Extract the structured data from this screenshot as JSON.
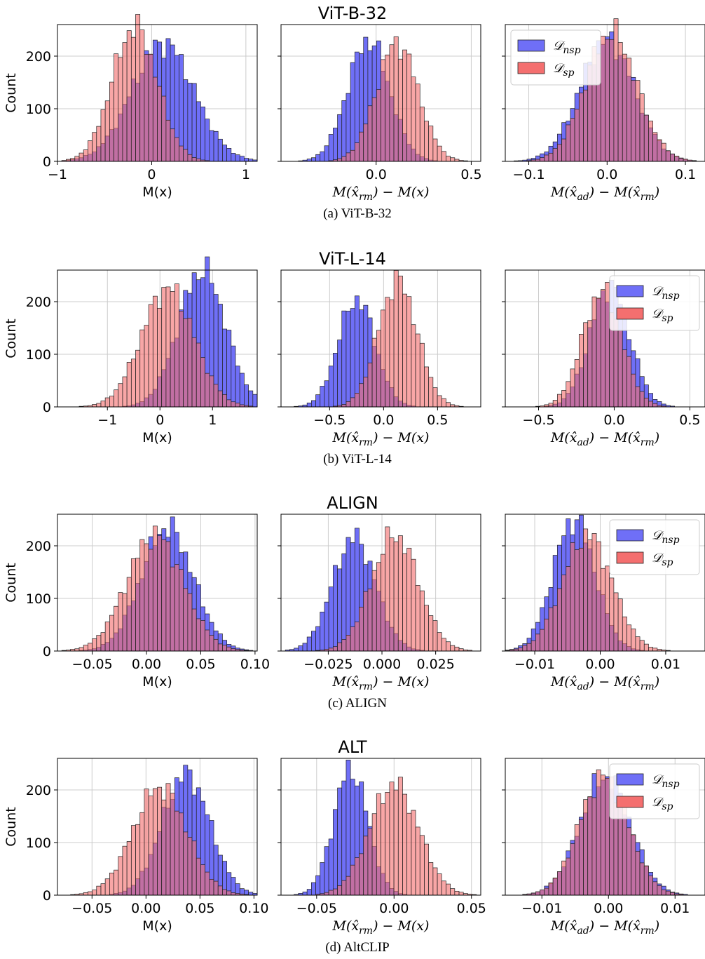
{
  "colors": {
    "nsp": "#6f6ff7",
    "sp": "#f46f6f",
    "overlap": "#9e2f62",
    "edge": "#222222",
    "grid": "#cccccc"
  },
  "legend": {
    "nsp": "𝒟nsp",
    "sp": "𝒟sp"
  },
  "groups": [
    {
      "title": "ViT-B-32",
      "caption": "(a) ViT-B-32",
      "ylabel": "Count",
      "yticks": [
        0,
        100,
        200
      ],
      "panels": [
        {
          "xlabel": "M(x)",
          "math": false,
          "xlim": [
            -1.0,
            1.12
          ],
          "xticks": [
            -1,
            0,
            1
          ],
          "xtickLabels": [
            "−1",
            "0",
            "1"
          ],
          "nsp": {
            "mean": 0.12,
            "sd": 0.33
          },
          "sp": {
            "mean": -0.18,
            "sd": 0.24
          },
          "legend": false
        },
        {
          "xlabel": "M(x̂rm) − M(x)",
          "math": true,
          "xlim": [
            -0.5,
            0.55
          ],
          "xticks": [
            0.0,
            0.5
          ],
          "xtickLabels": [
            "0.0",
            "0.5"
          ],
          "nsp": {
            "mean": -0.04,
            "sd": 0.11
          },
          "sp": {
            "mean": 0.11,
            "sd": 0.11
          },
          "legend": false
        },
        {
          "xlabel": "M(x̂ad) − M(x̂rm)",
          "math": true,
          "xlim": [
            -0.13,
            0.125
          ],
          "xticks": [
            -0.1,
            0.0,
            0.1
          ],
          "xtickLabels": [
            "−0.1",
            "0.0",
            "0.1"
          ],
          "nsp": {
            "mean": 0.0,
            "sd": 0.035
          },
          "sp": {
            "mean": 0.005,
            "sd": 0.033
          },
          "legend": "upper-left"
        }
      ]
    },
    {
      "title": "ViT-L-14",
      "caption": "(b) ViT-L-14",
      "ylabel": "Count",
      "yticks": [
        0,
        100,
        200
      ],
      "panels": [
        {
          "xlabel": "M(x)",
          "math": false,
          "xlim": [
            -1.95,
            1.85
          ],
          "xticks": [
            -1,
            0,
            1
          ],
          "xtickLabels": [
            "−1",
            "0",
            "1"
          ],
          "nsp": {
            "mean": 0.8,
            "sd": 0.45
          },
          "sp": {
            "mean": 0.15,
            "sd": 0.5
          },
          "legend": false
        },
        {
          "xlabel": "M(x̂rm) − M(x)",
          "math": true,
          "xlim": [
            -0.95,
            0.9
          ],
          "xticks": [
            -0.5,
            0.0,
            0.5
          ],
          "xtickLabels": [
            "−0.5",
            "0.0",
            "0.5"
          ],
          "nsp": {
            "mean": -0.25,
            "sd": 0.17
          },
          "sp": {
            "mean": 0.13,
            "sd": 0.18
          },
          "legend": false
        },
        {
          "xlabel": "M(x̂ad) − M(x̂rm)",
          "math": true,
          "xlim": [
            -0.72,
            0.6
          ],
          "xticks": [
            -0.5,
            0.0,
            0.5
          ],
          "xtickLabels": [
            "−0.5",
            "0.0",
            "0.5"
          ],
          "nsp": {
            "mean": -0.03,
            "sd": 0.13
          },
          "sp": {
            "mean": -0.08,
            "sd": 0.13
          },
          "legend": "upper-right"
        }
      ]
    },
    {
      "title": "ALIGN",
      "caption": "(c) ALIGN",
      "ylabel": "Count",
      "yticks": [
        0,
        100,
        200
      ],
      "panels": [
        {
          "xlabel": "M(x)",
          "math": false,
          "xlim": [
            -0.082,
            0.102
          ],
          "xticks": [
            -0.05,
            0.0,
            0.05,
            0.1
          ],
          "xtickLabels": [
            "−0.05",
            "0.00",
            "0.05",
            "0.10"
          ],
          "nsp": {
            "mean": 0.019,
            "sd": 0.024
          },
          "sp": {
            "mean": 0.008,
            "sd": 0.026
          },
          "legend": false
        },
        {
          "xlabel": "M(x̂rm) − M(x)",
          "math": true,
          "xlim": [
            -0.047,
            0.046
          ],
          "xticks": [
            -0.025,
            0.0,
            0.025
          ],
          "xtickLabels": [
            "−0.025",
            "0.000",
            "0.025"
          ],
          "nsp": {
            "mean": -0.013,
            "sd": 0.01
          },
          "sp": {
            "mean": 0.006,
            "sd": 0.011
          },
          "legend": false
        },
        {
          "xlabel": "M(x̂ad) − M(x̂rm)",
          "math": true,
          "xlim": [
            -0.0145,
            0.016
          ],
          "xticks": [
            -0.01,
            0.0,
            0.01
          ],
          "xtickLabels": [
            "−0.01",
            "0.00",
            "0.01"
          ],
          "nsp": {
            "mean": -0.004,
            "sd": 0.0032
          },
          "sp": {
            "mean": -0.002,
            "sd": 0.0038
          },
          "legend": "upper-right"
        }
      ]
    },
    {
      "title": "ALT",
      "caption": "(d) AltCLIP",
      "ylabel": "Count",
      "yticks": [
        0,
        100,
        200
      ],
      "panels": [
        {
          "xlabel": "M(x)",
          "math": false,
          "xlim": [
            -0.082,
            0.103
          ],
          "xticks": [
            -0.05,
            0.0,
            0.05,
            0.1
          ],
          "xtickLabels": [
            "−0.05",
            "0.00",
            "0.05",
            "0.10"
          ],
          "nsp": {
            "mean": 0.037,
            "sd": 0.022
          },
          "sp": {
            "mean": 0.013,
            "sd": 0.025
          },
          "legend": false
        },
        {
          "xlabel": "M(x̂rm) − M(x)",
          "math": true,
          "xlim": [
            -0.073,
            0.056
          ],
          "xticks": [
            -0.05,
            0.0,
            0.05
          ],
          "xtickLabels": [
            "−0.05",
            "0.00",
            "0.05"
          ],
          "nsp": {
            "mean": -0.028,
            "sd": 0.011
          },
          "sp": {
            "mean": 0.0,
            "sd": 0.016
          },
          "legend": false
        },
        {
          "xlabel": "M(x̂ad) − M(x̂rm)",
          "math": true,
          "xlim": [
            -0.0155,
            0.0145
          ],
          "xticks": [
            -0.01,
            0.0,
            0.01
          ],
          "xtickLabels": [
            "−0.01",
            "0.00",
            "0.01"
          ],
          "nsp": {
            "mean": -0.0005,
            "sd": 0.0038
          },
          "sp": {
            "mean": -0.0007,
            "sd": 0.0037
          },
          "legend": "upper-right"
        }
      ]
    }
  ],
  "chart_data": [
    {
      "type": "histogram",
      "title": "ViT-B-32",
      "subplots": [
        {
          "xlabel": "M(x)",
          "ylabel": "Count",
          "xlim": [
            -1.0,
            1.12
          ],
          "ylim": [
            0,
            260
          ],
          "series": [
            {
              "name": "𝒟nsp",
              "mean": 0.12,
              "sd": 0.33,
              "peak_count": 225
            },
            {
              "name": "𝒟sp",
              "mean": -0.18,
              "sd": 0.24,
              "peak_count": 255
            }
          ]
        },
        {
          "xlabel": "M(x̂rm) − M(x)",
          "xlim": [
            -0.5,
            0.55
          ],
          "ylim": [
            0,
            260
          ],
          "series": [
            {
              "name": "𝒟nsp",
              "mean": -0.04,
              "sd": 0.11,
              "peak_count": 230
            },
            {
              "name": "𝒟sp",
              "mean": 0.11,
              "sd": 0.11,
              "peak_count": 225
            }
          ]
        },
        {
          "xlabel": "M(x̂ad) − M(x̂rm)",
          "xlim": [
            -0.13,
            0.125
          ],
          "ylim": [
            0,
            260
          ],
          "series": [
            {
              "name": "𝒟nsp",
              "mean": 0.0,
              "sd": 0.035,
              "peak_count": 230
            },
            {
              "name": "𝒟sp",
              "mean": 0.005,
              "sd": 0.033,
              "peak_count": 245
            }
          ]
        }
      ]
    },
    {
      "type": "histogram",
      "title": "ViT-L-14",
      "subplots": [
        {
          "xlabel": "M(x)",
          "ylabel": "Count",
          "xlim": [
            -1.95,
            1.85
          ],
          "ylim": [
            0,
            270
          ],
          "series": [
            {
              "name": "𝒟nsp",
              "mean": 0.8,
              "sd": 0.45,
              "peak_count": 260
            },
            {
              "name": "𝒟sp",
              "mean": 0.15,
              "sd": 0.5,
              "peak_count": 225
            }
          ]
        },
        {
          "xlabel": "M(x̂rm) − M(x)",
          "xlim": [
            -0.95,
            0.9
          ],
          "ylim": [
            0,
            270
          ],
          "series": [
            {
              "name": "𝒟nsp",
              "mean": -0.25,
              "sd": 0.17,
              "peak_count": 205
            },
            {
              "name": "𝒟sp",
              "mean": 0.13,
              "sd": 0.18,
              "peak_count": 240
            }
          ]
        },
        {
          "xlabel": "M(x̂ad) − M(x̂rm)",
          "xlim": [
            -0.72,
            0.6
          ],
          "ylim": [
            0,
            270
          ],
          "series": [
            {
              "name": "𝒟nsp",
              "mean": -0.03,
              "sd": 0.13,
              "peak_count": 230
            },
            {
              "name": "𝒟sp",
              "mean": -0.08,
              "sd": 0.13,
              "peak_count": 220
            }
          ]
        }
      ]
    },
    {
      "type": "histogram",
      "title": "ALIGN",
      "subplots": [
        {
          "xlabel": "M(x)",
          "ylabel": "Count",
          "xlim": [
            -0.082,
            0.102
          ],
          "ylim": [
            0,
            265
          ],
          "series": [
            {
              "name": "𝒟nsp",
              "mean": 0.019,
              "sd": 0.024,
              "peak_count": 235
            },
            {
              "name": "𝒟sp",
              "mean": 0.008,
              "sd": 0.026,
              "peak_count": 220
            }
          ]
        },
        {
          "xlabel": "M(x̂rm) − M(x)",
          "xlim": [
            -0.047,
            0.046
          ],
          "ylim": [
            0,
            265
          ],
          "series": [
            {
              "name": "𝒟nsp",
              "mean": -0.013,
              "sd": 0.01,
              "peak_count": 215
            },
            {
              "name": "𝒟sp",
              "mean": 0.006,
              "sd": 0.011,
              "peak_count": 220
            }
          ]
        },
        {
          "xlabel": "M(x̂ad) − M(x̂rm)",
          "xlim": [
            -0.0145,
            0.016
          ],
          "ylim": [
            0,
            265
          ],
          "series": [
            {
              "name": "𝒟nsp",
              "mean": -0.004,
              "sd": 0.0032,
              "peak_count": 250
            },
            {
              "name": "𝒟sp",
              "mean": -0.002,
              "sd": 0.0038,
              "peak_count": 220
            }
          ]
        }
      ]
    },
    {
      "type": "histogram",
      "title": "ALT",
      "subplots": [
        {
          "xlabel": "M(x)",
          "ylabel": "Count",
          "xlim": [
            -0.082,
            0.103
          ],
          "ylim": [
            0,
            250
          ],
          "series": [
            {
              "name": "𝒟nsp",
              "mean": 0.037,
              "sd": 0.022,
              "peak_count": 230
            },
            {
              "name": "𝒟sp",
              "mean": 0.013,
              "sd": 0.025,
              "peak_count": 205
            }
          ]
        },
        {
          "xlabel": "M(x̂rm) − M(x)",
          "xlim": [
            -0.073,
            0.056
          ],
          "ylim": [
            0,
            250
          ],
          "series": [
            {
              "name": "𝒟nsp",
              "mean": -0.028,
              "sd": 0.011,
              "peak_count": 240
            },
            {
              "name": "𝒟sp",
              "mean": 0.0,
              "sd": 0.016,
              "peak_count": 210
            }
          ]
        },
        {
          "xlabel": "M(x̂ad) − M(x̂rm)",
          "xlim": [
            -0.0155,
            0.0145
          ],
          "ylim": [
            0,
            250
          ],
          "series": [
            {
              "name": "𝒟nsp",
              "mean": -0.0005,
              "sd": 0.0038,
              "peak_count": 225
            },
            {
              "name": "𝒟sp",
              "mean": -0.0007,
              "sd": 0.0037,
              "peak_count": 225
            }
          ]
        }
      ]
    }
  ]
}
